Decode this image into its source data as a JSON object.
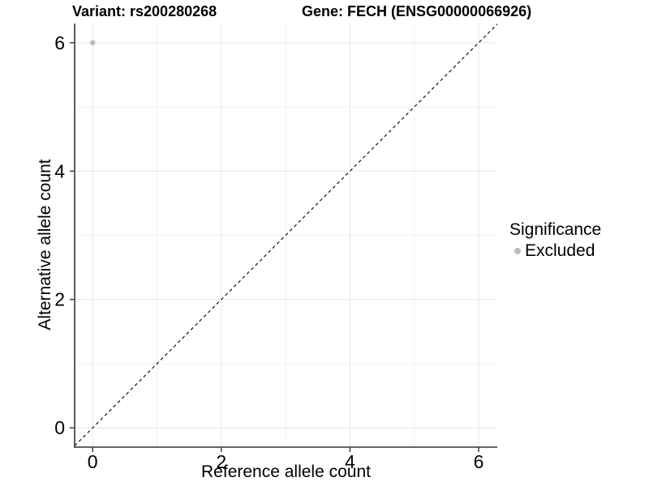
{
  "chart_data": {
    "type": "scatter",
    "title_left": "Variant: rs200280268",
    "title_right": "Gene: FECH (ENSG00000066926)",
    "xlabel": "Reference allele count",
    "ylabel": "Alternative allele count",
    "xlim": [
      -0.28,
      6.29
    ],
    "ylim": [
      -0.3,
      6.3
    ],
    "x_ticks": [
      0,
      2,
      4,
      6
    ],
    "y_ticks": [
      0,
      2,
      4,
      6
    ],
    "x_minor_ticks": [
      1,
      3,
      5
    ],
    "y_minor_ticks": [
      1,
      3,
      5
    ],
    "grid": true,
    "legend_position": "right",
    "points": [
      {
        "x": 0,
        "y": 6,
        "significance": "Excluded"
      }
    ],
    "reference_line": {
      "type": "identity y=x",
      "style": "dashed",
      "color": "#000000"
    },
    "legend": {
      "title": "Significance",
      "entries": [
        {
          "label": "Excluded",
          "color": "#bcbcbc"
        }
      ]
    },
    "colors": {
      "point": "#bcbcbc",
      "grid_major": "#e6e6e6",
      "grid_minor": "#f0f0f0",
      "axis_line": "#333333",
      "text": "#000000"
    }
  }
}
